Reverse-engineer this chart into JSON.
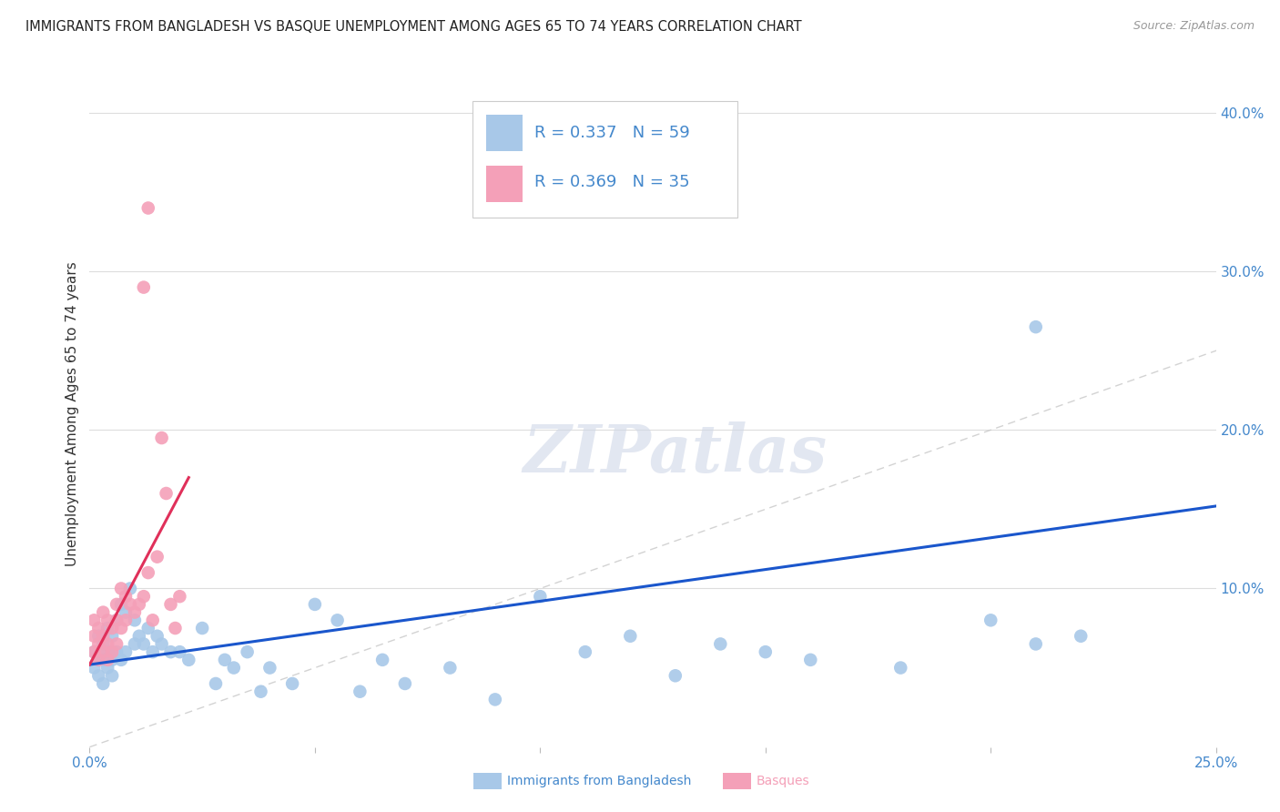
{
  "title": "IMMIGRANTS FROM BANGLADESH VS BASQUE UNEMPLOYMENT AMONG AGES 65 TO 74 YEARS CORRELATION CHART",
  "source": "Source: ZipAtlas.com",
  "ylabel": "Unemployment Among Ages 65 to 74 years",
  "legend_label_blue": "Immigrants from Bangladesh",
  "legend_label_pink": "Basques",
  "R_blue": 0.337,
  "N_blue": 59,
  "R_pink": 0.369,
  "N_pink": 35,
  "xlim": [
    0.0,
    0.25
  ],
  "ylim": [
    0.0,
    0.42
  ],
  "yticks": [
    0.0,
    0.1,
    0.2,
    0.3,
    0.4
  ],
  "ytick_labels": [
    "",
    "10.0%",
    "20.0%",
    "30.0%",
    "40.0%"
  ],
  "xticks": [
    0.0,
    0.05,
    0.1,
    0.15,
    0.2,
    0.25
  ],
  "xtick_labels": [
    "0.0%",
    "",
    "",
    "",
    "",
    "25.0%"
  ],
  "watermark": "ZIPatlas",
  "blue_color": "#a8c8e8",
  "pink_color": "#f4a0b8",
  "line_blue_color": "#1a56cc",
  "line_pink_color": "#e0305a",
  "dashed_line_color": "#c8c8c8",
  "text_blue": "#4488cc",
  "text_dark": "#333333",
  "blue_x": [
    0.001,
    0.001,
    0.002,
    0.002,
    0.002,
    0.003,
    0.003,
    0.003,
    0.004,
    0.004,
    0.004,
    0.005,
    0.005,
    0.005,
    0.006,
    0.006,
    0.007,
    0.007,
    0.008,
    0.008,
    0.009,
    0.01,
    0.01,
    0.011,
    0.012,
    0.013,
    0.014,
    0.015,
    0.016,
    0.018,
    0.02,
    0.022,
    0.025,
    0.028,
    0.03,
    0.032,
    0.035,
    0.038,
    0.04,
    0.045,
    0.05,
    0.055,
    0.06,
    0.065,
    0.07,
    0.08,
    0.09,
    0.1,
    0.11,
    0.12,
    0.13,
    0.14,
    0.15,
    0.16,
    0.18,
    0.2,
    0.21,
    0.22,
    0.21
  ],
  "blue_y": [
    0.05,
    0.06,
    0.045,
    0.055,
    0.07,
    0.04,
    0.055,
    0.065,
    0.05,
    0.06,
    0.075,
    0.045,
    0.055,
    0.07,
    0.06,
    0.08,
    0.055,
    0.09,
    0.06,
    0.085,
    0.1,
    0.065,
    0.08,
    0.07,
    0.065,
    0.075,
    0.06,
    0.07,
    0.065,
    0.06,
    0.06,
    0.055,
    0.075,
    0.04,
    0.055,
    0.05,
    0.06,
    0.035,
    0.05,
    0.04,
    0.09,
    0.08,
    0.035,
    0.055,
    0.04,
    0.05,
    0.03,
    0.095,
    0.06,
    0.07,
    0.045,
    0.065,
    0.06,
    0.055,
    0.05,
    0.08,
    0.065,
    0.07,
    0.265
  ],
  "pink_x": [
    0.001,
    0.001,
    0.001,
    0.002,
    0.002,
    0.002,
    0.003,
    0.003,
    0.003,
    0.004,
    0.004,
    0.004,
    0.005,
    0.005,
    0.006,
    0.006,
    0.006,
    0.007,
    0.007,
    0.008,
    0.008,
    0.009,
    0.01,
    0.011,
    0.012,
    0.013,
    0.014,
    0.015,
    0.017,
    0.018,
    0.019,
    0.02,
    0.013,
    0.012,
    0.016
  ],
  "pink_y": [
    0.06,
    0.07,
    0.08,
    0.055,
    0.065,
    0.075,
    0.06,
    0.07,
    0.085,
    0.055,
    0.065,
    0.08,
    0.06,
    0.075,
    0.065,
    0.08,
    0.09,
    0.075,
    0.1,
    0.08,
    0.095,
    0.09,
    0.085,
    0.09,
    0.095,
    0.11,
    0.08,
    0.12,
    0.16,
    0.09,
    0.075,
    0.095,
    0.34,
    0.29,
    0.195
  ],
  "blue_line_x": [
    0.0,
    0.25
  ],
  "blue_line_y": [
    0.052,
    0.152
  ],
  "pink_line_x": [
    0.0,
    0.022
  ],
  "pink_line_y": [
    0.052,
    0.17
  ]
}
